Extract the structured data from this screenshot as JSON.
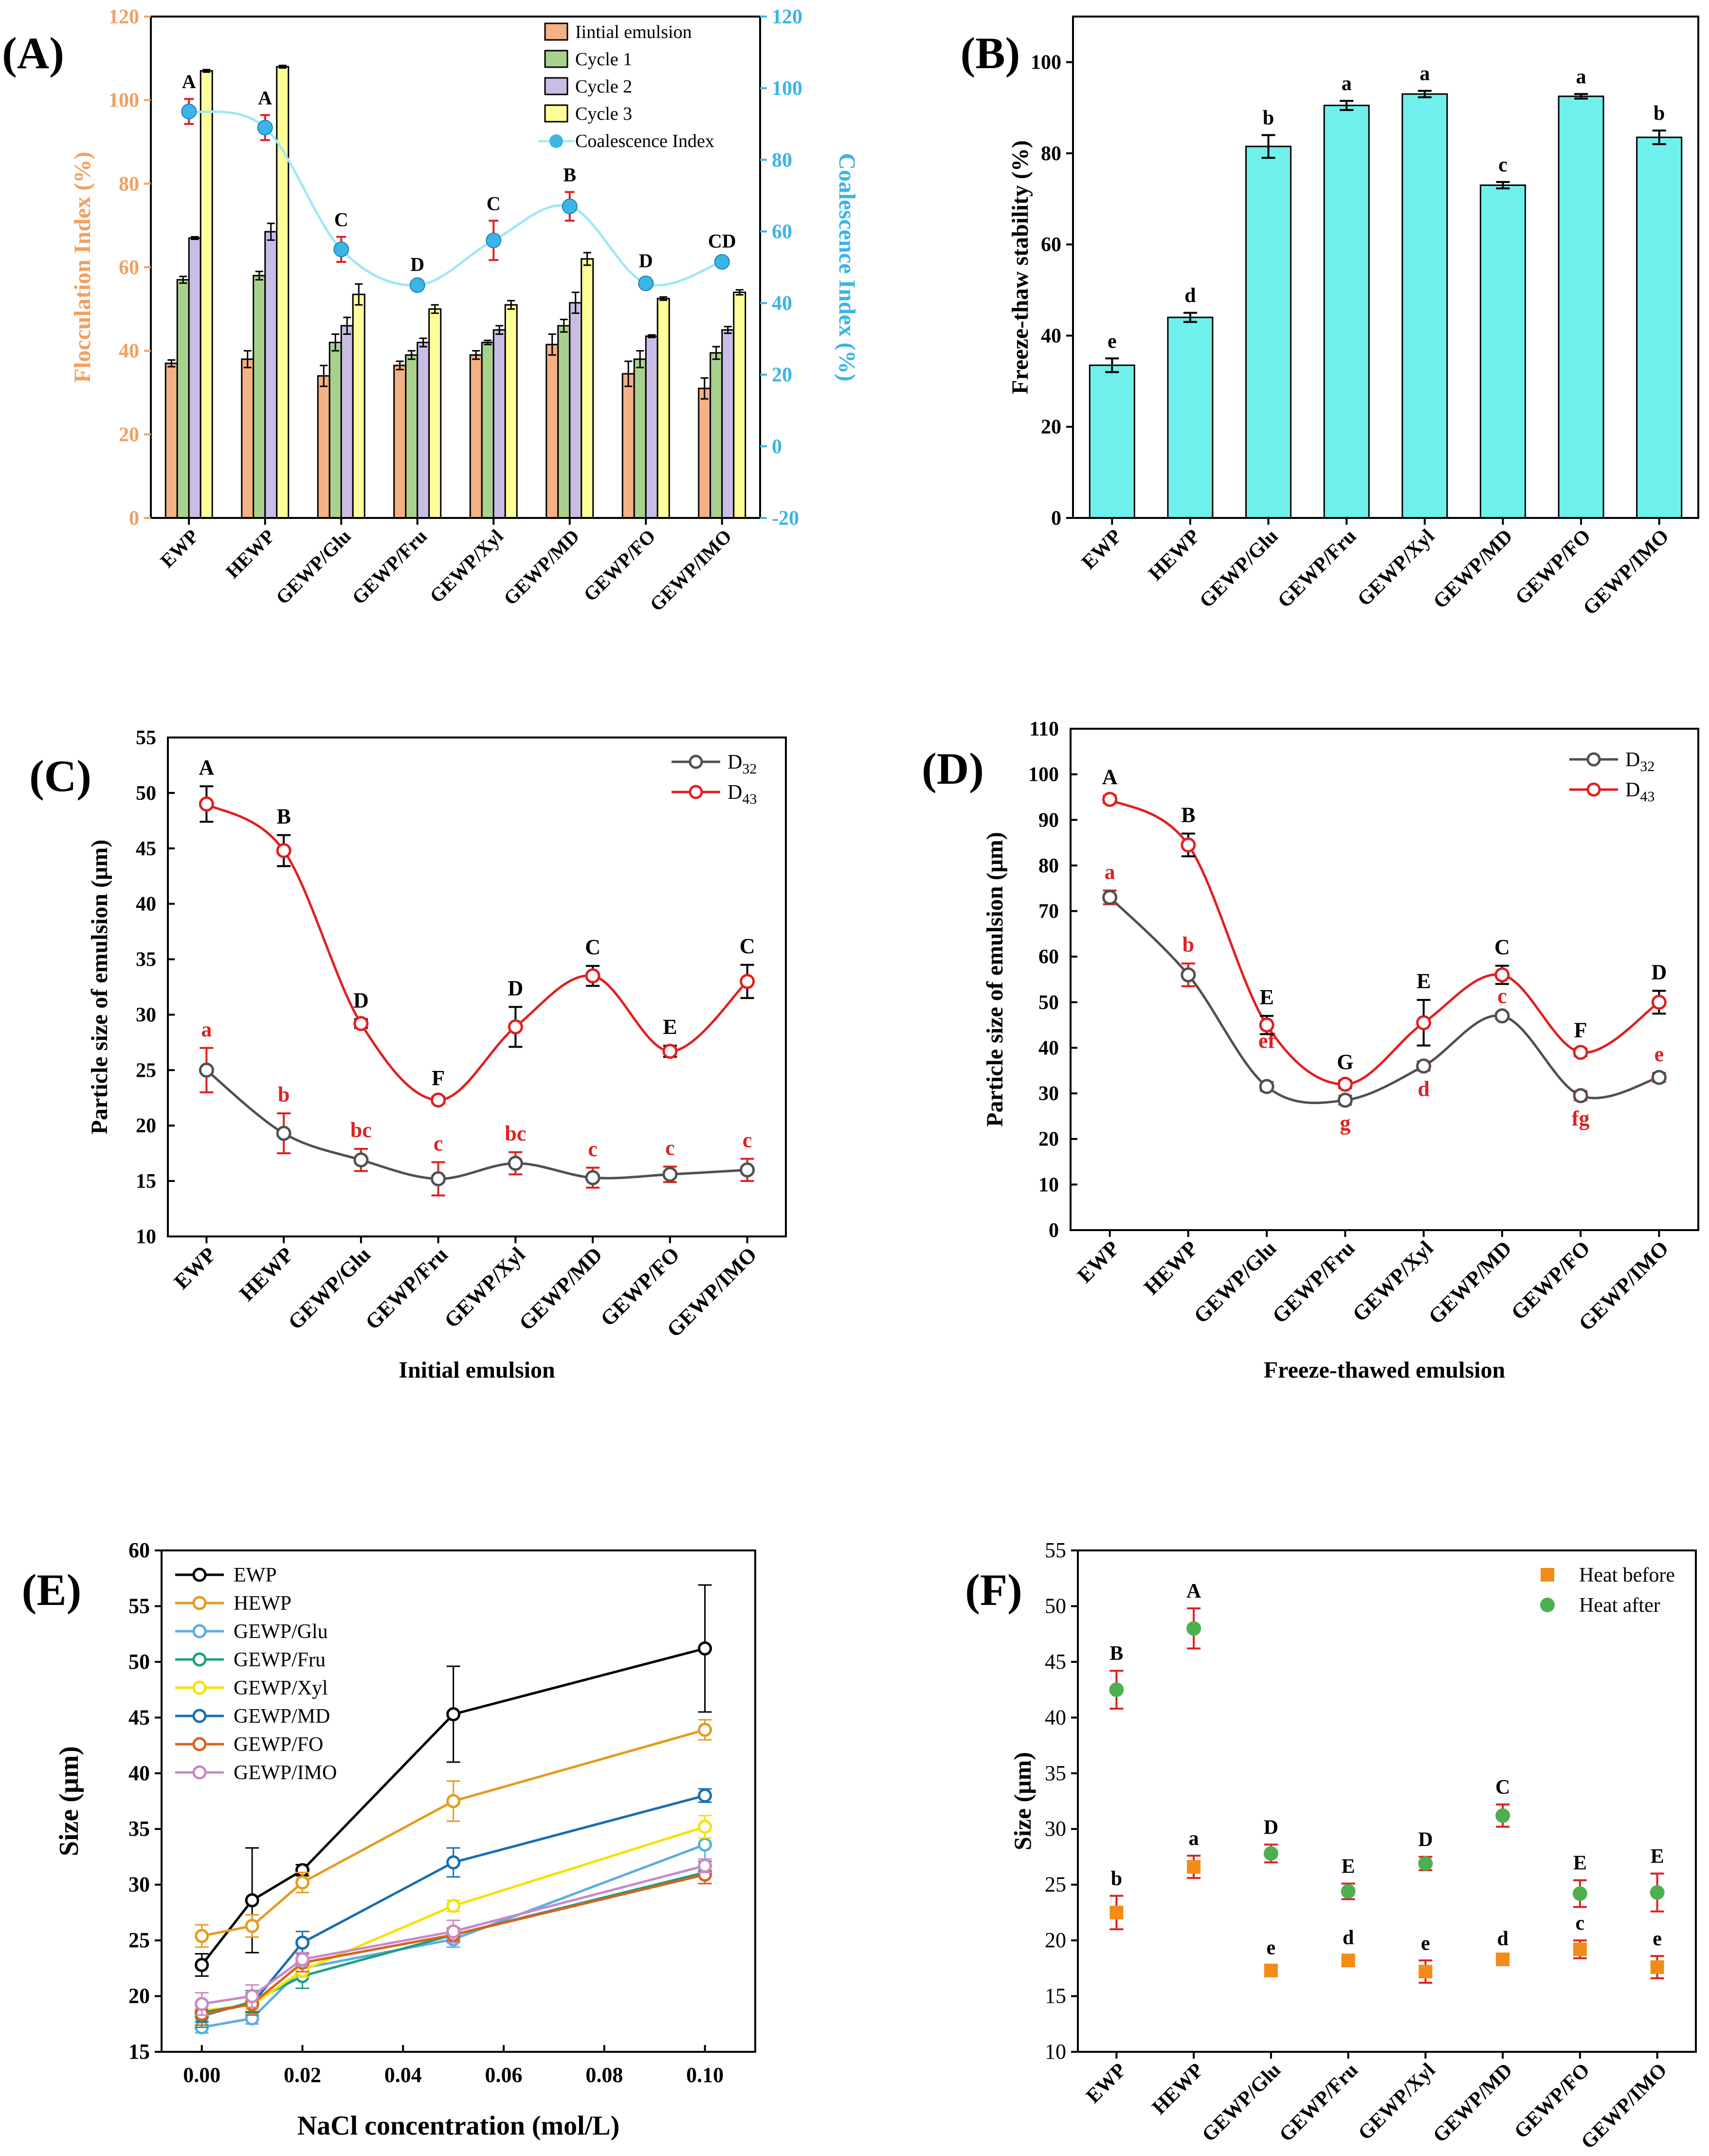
{
  "categories": [
    "EWP",
    "HEWP",
    "GEWP/Glu",
    "GEWP/Fru",
    "GEWP/Xyl",
    "GEWP/MD",
    "GEWP/FO",
    "GEWP/IMO"
  ],
  "chart_data": [
    {
      "panel": "(A)",
      "type": "bar",
      "ylabel": "Flocculation Index (%)",
      "y2label": "Coalescence Index (%)",
      "ylim": [
        0,
        120
      ],
      "y2lim": [
        -20,
        120
      ],
      "yticks": [
        "0",
        "20",
        "40",
        "60",
        "80",
        "100",
        "120"
      ],
      "y2ticks": [
        "-20",
        "0",
        "20",
        "40",
        "60",
        "80",
        "100",
        "120"
      ],
      "series": [
        {
          "name": "Iintial emulsion",
          "color": "#f4b183",
          "values": [
            37,
            38,
            34,
            36.5,
            39,
            41.5,
            34.5,
            31
          ],
          "err": [
            0.8,
            2,
            2.5,
            1,
            1,
            2.5,
            3,
            2.5
          ]
        },
        {
          "name": "Cycle 1",
          "color": "#a9d18e",
          "values": [
            57,
            58,
            42,
            39,
            42,
            46,
            38,
            39.5
          ],
          "err": [
            0.8,
            1,
            2,
            1,
            0.5,
            1.5,
            2,
            1.5
          ]
        },
        {
          "name": "Cycle 2",
          "color": "#c9bde6",
          "values": [
            67,
            68.5,
            46,
            42,
            45,
            51.5,
            43.5,
            45
          ],
          "err": [
            0.3,
            2,
            2,
            1,
            1,
            2.5,
            0.3,
            0.8
          ]
        },
        {
          "name": "Cycle 3",
          "color": "#ffff99",
          "values": [
            107,
            108,
            53.5,
            50,
            51,
            62,
            52.5,
            54
          ],
          "err": [
            0.3,
            0.3,
            2.5,
            1,
            1,
            1.5,
            0.4,
            0.6
          ]
        }
      ],
      "line": {
        "name": "Coalescence Index",
        "values": [
          93.5,
          89,
          55,
          45,
          57.5,
          67,
          45.5,
          51.5
        ],
        "err": [
          3.5,
          3.5,
          3.5,
          1,
          5.5,
          4,
          1.5,
          1
        ],
        "labels": [
          "A",
          "A",
          "C",
          "D",
          "C",
          "B",
          "D",
          "CD"
        ]
      }
    },
    {
      "panel": "(B)",
      "type": "bar",
      "ylabel": "Freeze-thaw stability (%)",
      "ylim": [
        0,
        110
      ],
      "yticks": [
        "0",
        "20",
        "40",
        "60",
        "80",
        "100"
      ],
      "values": [
        33.5,
        44,
        81.5,
        90.5,
        93,
        73,
        92.5,
        83.5
      ],
      "err": [
        1.5,
        1,
        2.5,
        1,
        0.7,
        0.7,
        0.5,
        1.5
      ],
      "labels": [
        "e",
        "d",
        "b",
        "a",
        "a",
        "c",
        "a",
        "b"
      ]
    },
    {
      "panel": "(C)",
      "type": "line",
      "ylabel": "Particle size of emulsion (μm)",
      "xlabel": "Initial emulsion",
      "ylim": [
        10,
        55
      ],
      "yticks": [
        "10",
        "15",
        "20",
        "25",
        "30",
        "35",
        "40",
        "45",
        "50",
        "55"
      ],
      "series": [
        {
          "name": "D32",
          "values": [
            25,
            19.3,
            16.9,
            15.2,
            16.6,
            15.3,
            15.6,
            16
          ],
          "err": [
            2,
            1.8,
            1,
            1.5,
            1,
            0.9,
            0.7,
            1
          ],
          "labels": [
            "a",
            "b",
            "bc",
            "c",
            "bc",
            "c",
            "c",
            "c"
          ]
        },
        {
          "name": "D43",
          "values": [
            49,
            44.8,
            29.2,
            22.3,
            28.9,
            33.5,
            26.7,
            33
          ],
          "err": [
            1.6,
            1.4,
            0.4,
            0.3,
            1.8,
            0.9,
            0.5,
            1.5
          ],
          "labels": [
            "A",
            "B",
            "D",
            "F",
            "D",
            "C",
            "E",
            "C"
          ]
        }
      ]
    },
    {
      "panel": "(D)",
      "type": "line",
      "ylabel": "Particle size of emulsion (μm)",
      "xlabel": "Freeze-thawed emulsion",
      "ylim": [
        0,
        110
      ],
      "yticks": [
        "0",
        "10",
        "20",
        "30",
        "40",
        "50",
        "60",
        "70",
        "80",
        "90",
        "100",
        "110"
      ],
      "series": [
        {
          "name": "D32",
          "values": [
            73,
            56,
            31.5,
            28.5,
            36,
            47,
            29.5,
            33.5
          ],
          "err": [
            1.5,
            2.5,
            1,
            1,
            1,
            0.7,
            1,
            1
          ],
          "labels": [
            "a",
            "b",
            "ef",
            "g",
            "d",
            "c",
            "fg",
            "e"
          ]
        },
        {
          "name": "D43",
          "values": [
            94.5,
            84.5,
            45,
            32,
            45.5,
            56,
            39,
            50
          ],
          "err": [
            0.8,
            2.5,
            2,
            0.8,
            5,
            2,
            0.8,
            2.5
          ],
          "labels": [
            "A",
            "B",
            "E",
            "G",
            "E",
            "C",
            "F",
            "D"
          ]
        }
      ]
    },
    {
      "panel": "(E)",
      "type": "line",
      "xlabel": "NaCl concentration (mol/L)",
      "ylabel": "Size (μm)",
      "x": [
        0,
        0.01,
        0.02,
        0.05,
        0.1
      ],
      "xlim": [
        -0.008,
        0.11
      ],
      "ylim": [
        15,
        60
      ],
      "xticks": [
        "0.00",
        "0.02",
        "0.04",
        "0.06",
        "0.08",
        "0.10"
      ],
      "yticks": [
        "15",
        "20",
        "25",
        "30",
        "35",
        "40",
        "45",
        "50",
        "55",
        "60"
      ],
      "series": [
        {
          "name": "EWP",
          "color": "#000000",
          "values": [
            22.8,
            28.6,
            31.3,
            45.3,
            51.2
          ],
          "err": [
            1,
            4.7,
            0.5,
            4.3,
            5.7
          ]
        },
        {
          "name": "HEWP",
          "color": "#e59b1f",
          "values": [
            25.4,
            26.3,
            30.2,
            37.5,
            43.9
          ],
          "err": [
            1,
            1,
            0.9,
            1.8,
            0.9
          ]
        },
        {
          "name": "GEWP/Glu",
          "color": "#5aaee0",
          "values": [
            17.2,
            18,
            22.5,
            25.1,
            33.6
          ],
          "err": [
            0.5,
            0.5,
            0.8,
            0.7,
            1.5
          ]
        },
        {
          "name": "GEWP/Fru",
          "color": "#1ba081",
          "values": [
            18.2,
            19.5,
            21.8,
            25.5,
            31.1
          ],
          "err": [
            1,
            1,
            1.1,
            0.6,
            1
          ]
        },
        {
          "name": "GEWP/Xyl",
          "color": "#f2e400",
          "values": [
            18.7,
            19.2,
            22.3,
            28.1,
            35.2
          ],
          "err": [
            0.4,
            0.4,
            0.6,
            0.5,
            1
          ]
        },
        {
          "name": "GEWP/MD",
          "color": "#1a6fb0",
          "values": [
            18.5,
            19.3,
            24.8,
            32,
            38
          ],
          "err": [
            0.8,
            0.7,
            1,
            1.3,
            0.6
          ]
        },
        {
          "name": "GEWP/FO",
          "color": "#d8631a",
          "values": [
            18.4,
            19.3,
            23,
            25.5,
            30.9
          ],
          "err": [
            1,
            1,
            0.8,
            0.6,
            0.8
          ]
        },
        {
          "name": "GEWP/IMO",
          "color": "#c78ac7",
          "values": [
            19.3,
            20,
            23.3,
            25.8,
            31.7
          ],
          "err": [
            1,
            1,
            0.6,
            1,
            0.6
          ]
        }
      ]
    },
    {
      "panel": "(F)",
      "type": "scatter",
      "ylabel": "Size (μm)",
      "ylim": [
        10,
        55
      ],
      "yticks": [
        "10",
        "15",
        "20",
        "25",
        "30",
        "35",
        "40",
        "45",
        "50",
        "55"
      ],
      "series": [
        {
          "name": "Heat before",
          "color": "#f28c18",
          "values": [
            22.5,
            26.6,
            17.3,
            18.2,
            17.2,
            18.3,
            19.2,
            17.6
          ],
          "err": [
            1.5,
            1,
            0.5,
            0.5,
            1,
            0.3,
            0.8,
            1
          ],
          "labels": [
            "b",
            "a",
            "e",
            "d",
            "e",
            "d",
            "c",
            "e"
          ]
        },
        {
          "name": "Heat after",
          "color": "#4cb050",
          "values": [
            42.5,
            48,
            27.8,
            24.4,
            26.9,
            31.2,
            24.2,
            24.3
          ],
          "err": [
            1.7,
            1.8,
            0.8,
            0.7,
            0.6,
            1,
            1.2,
            1.7
          ],
          "labels": [
            "B",
            "A",
            "D",
            "E",
            "D",
            "C",
            "E",
            "E"
          ]
        }
      ]
    }
  ]
}
